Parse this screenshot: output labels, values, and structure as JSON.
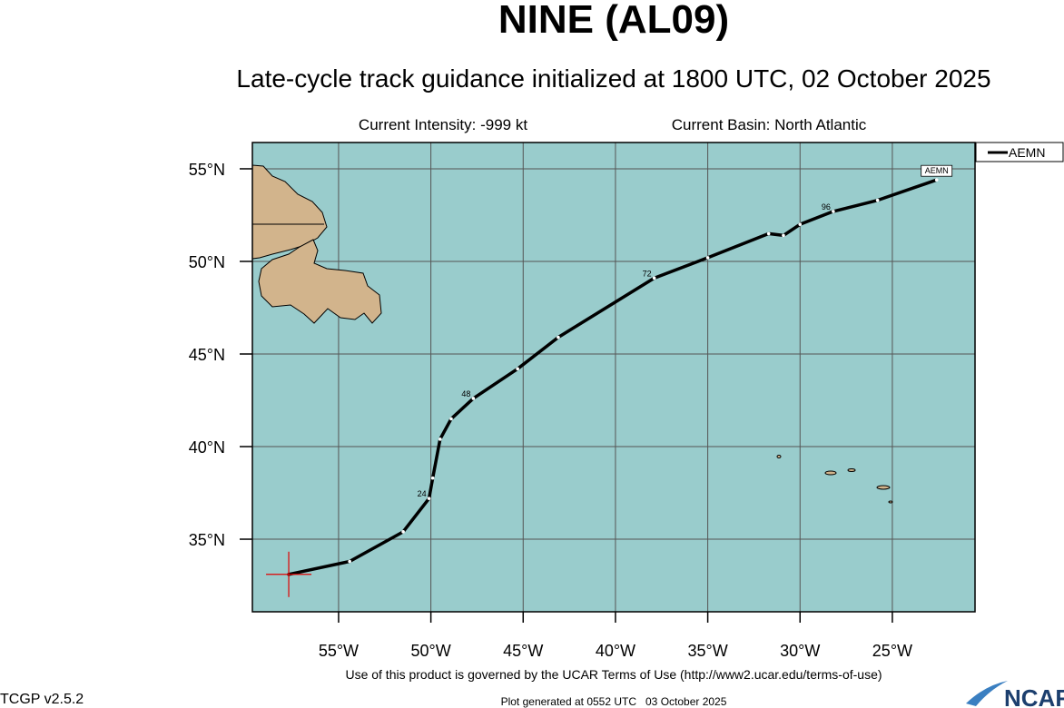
{
  "chart_data": {
    "type": "track",
    "title": "NINE (AL09)",
    "subtitle": "Late-cycle track guidance initialized at 1800 UTC, 02 October 2025",
    "intensity": "Current Intensity: -999 kt",
    "basin": "Current Basin: North Atlantic",
    "terms": "Use of this product is governed by the UCAR Terms of Use (http://www2.ucar.edu/terms-of-use)",
    "version": "TCGP v2.5.2",
    "generated": "Plot generated at 0552 UTC   03 October 2025",
    "logo": "NCAR",
    "xlim": [
      -59.67,
      -20.52
    ],
    "ylim": [
      31.08,
      56.42
    ],
    "xticks": [
      {
        "value": -55,
        "label": "55°W"
      },
      {
        "value": -50,
        "label": "50°W"
      },
      {
        "value": -45,
        "label": "45°W"
      },
      {
        "value": -40,
        "label": "40°W"
      },
      {
        "value": -35,
        "label": "35°W"
      },
      {
        "value": -30,
        "label": "30°W"
      },
      {
        "value": -25,
        "label": "25°W"
      }
    ],
    "yticks": [
      {
        "value": 35,
        "label": "35°N"
      },
      {
        "value": 40,
        "label": "40°N"
      },
      {
        "value": 45,
        "label": "45°N"
      },
      {
        "value": 50,
        "label": "50°N"
      },
      {
        "value": 55,
        "label": "55°N"
      }
    ],
    "grid": true,
    "legend": "top-right",
    "series": [
      {
        "name": "AEMN",
        "color": "#000000",
        "x": [
          -57.7,
          -54.4,
          -51.5,
          -50.1,
          -49.9,
          -49.5,
          -48.9,
          -47.7,
          -45.3,
          -43.1,
          -37.9,
          -35.0,
          -31.7,
          -30.9,
          -30.0,
          -28.2,
          -25.8,
          -22.6
        ],
        "values": [
          33.1,
          33.8,
          35.4,
          37.2,
          38.3,
          40.4,
          41.5,
          42.6,
          44.2,
          45.9,
          49.1,
          50.2,
          51.5,
          51.4,
          52.0,
          52.7,
          53.3,
          54.4
        ],
        "point_labels": [
          null,
          null,
          null,
          "24",
          null,
          null,
          null,
          "48",
          null,
          null,
          "72",
          null,
          null,
          null,
          null,
          "96",
          null,
          null
        ]
      }
    ]
  }
}
